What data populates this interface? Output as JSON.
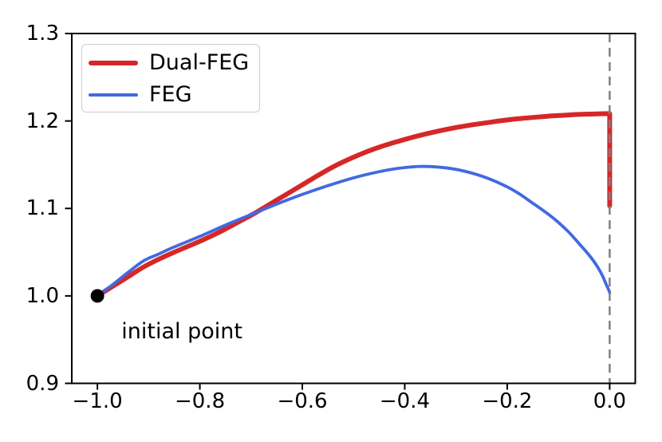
{
  "chart_data": {
    "type": "line",
    "title": "",
    "xlabel": "",
    "ylabel": "",
    "xlim": [
      -1.05,
      0.05
    ],
    "ylim": [
      0.9,
      1.3
    ],
    "grid": false,
    "legend_position": "upper left",
    "xticks": [
      {
        "value": -1.0,
        "label": "−1.0"
      },
      {
        "value": -0.8,
        "label": "−0.8"
      },
      {
        "value": -0.6,
        "label": "−0.6"
      },
      {
        "value": -0.4,
        "label": "−0.4"
      },
      {
        "value": -0.2,
        "label": "−0.2"
      },
      {
        "value": 0.0,
        "label": "0.0"
      }
    ],
    "yticks": [
      {
        "value": 0.9,
        "label": "0.9"
      },
      {
        "value": 1.0,
        "label": "1.0"
      },
      {
        "value": 1.1,
        "label": "1.1"
      },
      {
        "value": 1.2,
        "label": "1.2"
      },
      {
        "value": 1.3,
        "label": "1.3"
      }
    ],
    "series": [
      {
        "name": "Dual-FEG",
        "color": "#d62728",
        "width": 6,
        "drop_to": 1.103,
        "points": [
          [
            -1.0,
            1.0
          ],
          [
            -0.97,
            1.011
          ],
          [
            -0.94,
            1.022
          ],
          [
            -0.91,
            1.033
          ],
          [
            -0.88,
            1.042
          ],
          [
            -0.85,
            1.05
          ],
          [
            -0.8,
            1.0625
          ],
          [
            -0.76,
            1.0735
          ],
          [
            -0.72,
            1.086
          ],
          [
            -0.69,
            1.0955
          ],
          [
            -0.66,
            1.106
          ],
          [
            -0.63,
            1.1165
          ],
          [
            -0.6,
            1.127
          ],
          [
            -0.57,
            1.1375
          ],
          [
            -0.54,
            1.1475
          ],
          [
            -0.51,
            1.156
          ],
          [
            -0.48,
            1.1635
          ],
          [
            -0.45,
            1.17
          ],
          [
            -0.42,
            1.1755
          ],
          [
            -0.39,
            1.1805
          ],
          [
            -0.36,
            1.185
          ],
          [
            -0.33,
            1.189
          ],
          [
            -0.3,
            1.1925
          ],
          [
            -0.27,
            1.1955
          ],
          [
            -0.24,
            1.198
          ],
          [
            -0.21,
            1.2005
          ],
          [
            -0.18,
            1.2025
          ],
          [
            -0.15,
            1.204
          ],
          [
            -0.12,
            1.2055
          ],
          [
            -0.09,
            1.2065
          ],
          [
            -0.06,
            1.2075
          ],
          [
            -0.03,
            1.208
          ],
          [
            0.0,
            1.2085
          ]
        ]
      },
      {
        "name": "FEG",
        "color": "#4169e1",
        "width": 3.8,
        "drop_to": null,
        "points": [
          [
            -1.0,
            1.0
          ],
          [
            -0.97,
            1.013
          ],
          [
            -0.94,
            1.027
          ],
          [
            -0.91,
            1.04
          ],
          [
            -0.88,
            1.048
          ],
          [
            -0.85,
            1.056
          ],
          [
            -0.8,
            1.068
          ],
          [
            -0.75,
            1.081
          ],
          [
            -0.7,
            1.093
          ],
          [
            -0.65,
            1.105
          ],
          [
            -0.6,
            1.116
          ],
          [
            -0.55,
            1.126
          ],
          [
            -0.5,
            1.135
          ],
          [
            -0.45,
            1.142
          ],
          [
            -0.41,
            1.146
          ],
          [
            -0.37,
            1.148
          ],
          [
            -0.33,
            1.147
          ],
          [
            -0.29,
            1.1435
          ],
          [
            -0.25,
            1.137
          ],
          [
            -0.21,
            1.1275
          ],
          [
            -0.18,
            1.118
          ],
          [
            -0.15,
            1.106
          ],
          [
            -0.12,
            1.0935
          ],
          [
            -0.1,
            1.084
          ],
          [
            -0.08,
            1.073
          ],
          [
            -0.06,
            1.06
          ],
          [
            -0.045,
            1.05
          ],
          [
            -0.032,
            1.0405
          ],
          [
            -0.022,
            1.0315
          ],
          [
            -0.014,
            1.023
          ],
          [
            -0.007,
            1.0135
          ],
          [
            -0.002,
            1.007
          ],
          [
            0.0,
            1.0035
          ]
        ]
      }
    ],
    "vline": {
      "x": 0.0,
      "style": "dashed",
      "color": "#808080",
      "width": 2.5
    },
    "marker": {
      "x": -1.0,
      "y": 1.0,
      "color": "#000000",
      "radius": 8.5
    },
    "annotation": {
      "text": "initial point",
      "x": -0.953,
      "y": 0.9725
    },
    "axis_color": "#000000"
  }
}
